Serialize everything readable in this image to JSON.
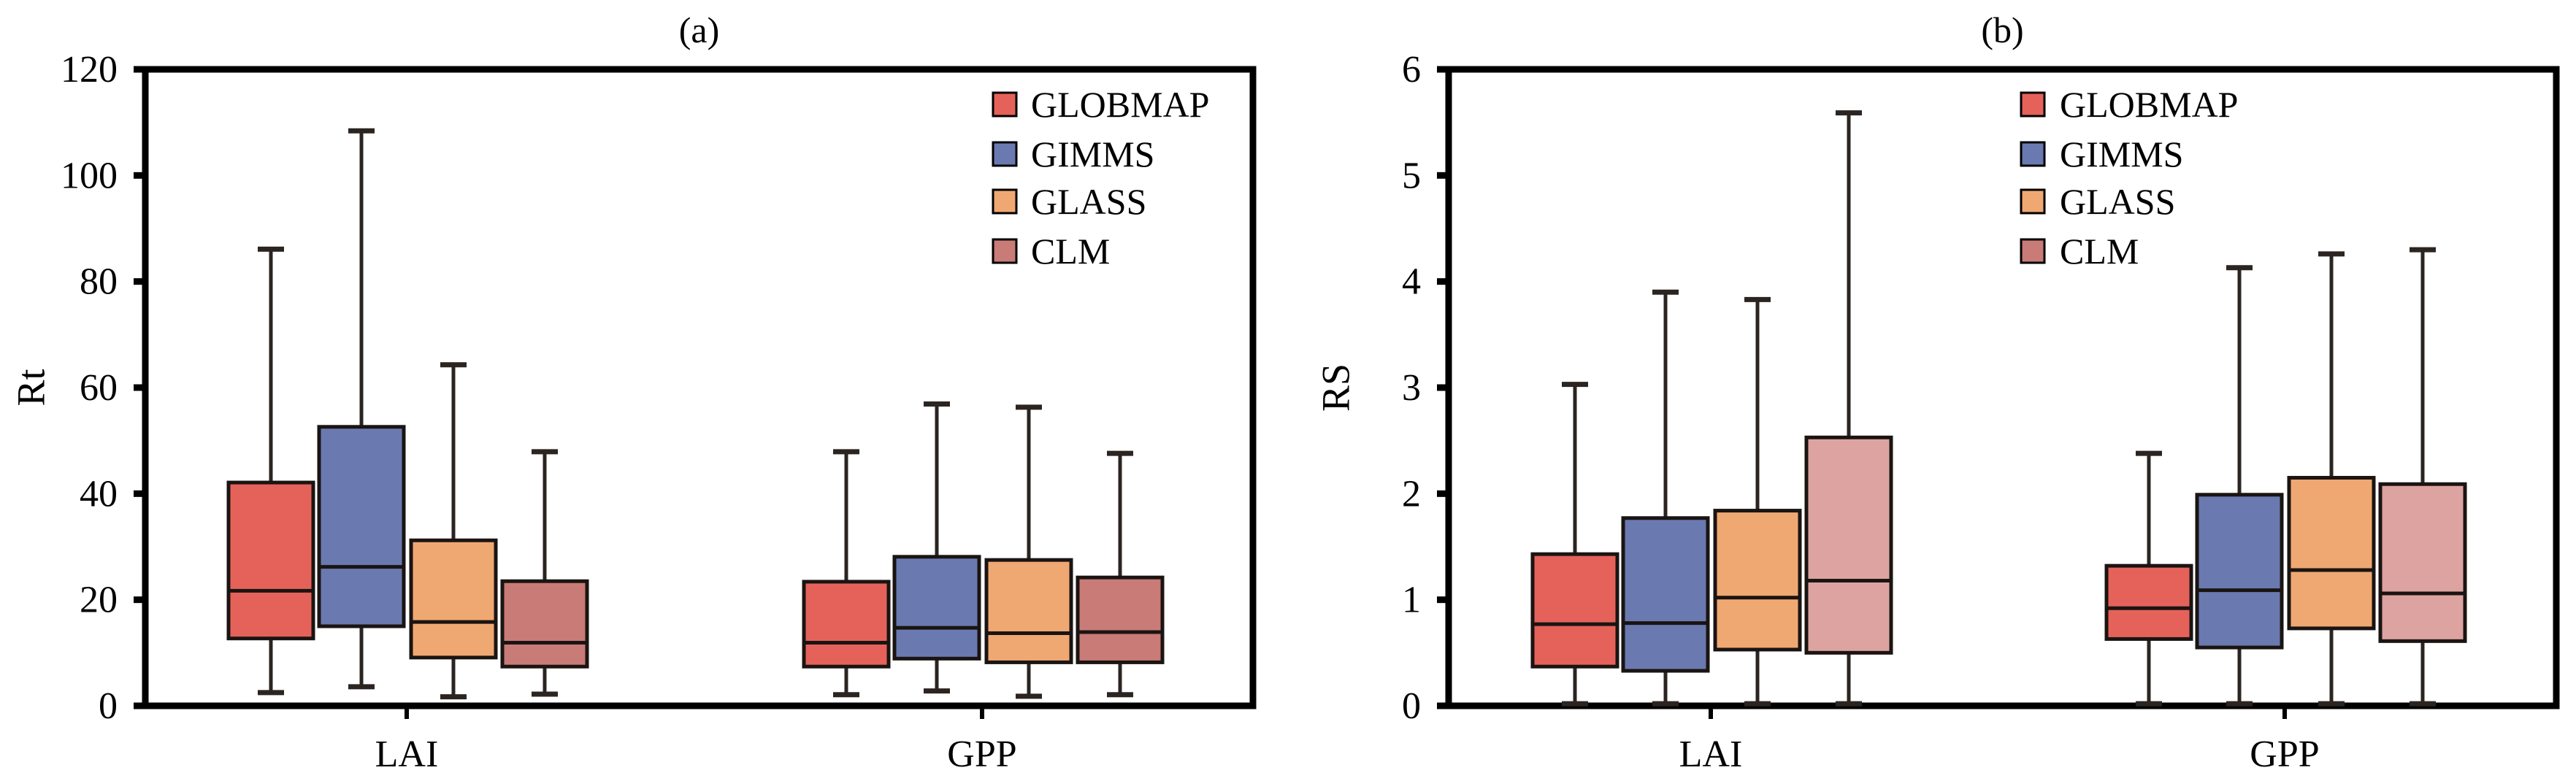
{
  "chart_data": [
    {
      "type": "box",
      "title": "(a)",
      "xlabel": "",
      "ylabel": "Rt",
      "ylim": [
        0,
        120
      ],
      "yticks": [
        "0",
        "20",
        "40",
        "60",
        "80",
        "100",
        "120"
      ],
      "categories": [
        "LAI",
        "GPP"
      ],
      "legend_position": "top-right",
      "grid": false,
      "series": [
        {
          "name": "GLOBMAP",
          "color": "#E5625A",
          "boxes": [
            {
              "min": 2.5,
              "q1": 12.7,
              "median": 21.7,
              "q3": 42.1,
              "max": 86.1
            },
            {
              "min": 2.1,
              "q1": 7.4,
              "median": 11.9,
              "q3": 23.4,
              "max": 47.9
            }
          ]
        },
        {
          "name": "GIMMS",
          "color": "#6A7AB0",
          "boxes": [
            {
              "min": 3.6,
              "q1": 15.0,
              "median": 26.2,
              "q3": 52.6,
              "max": 108.4
            },
            {
              "min": 2.8,
              "q1": 8.9,
              "median": 14.7,
              "q3": 28.1,
              "max": 56.9
            }
          ]
        },
        {
          "name": "GLASS",
          "color": "#F0A872",
          "boxes": [
            {
              "min": 1.7,
              "q1": 9.1,
              "median": 15.8,
              "q3": 31.2,
              "max": 64.3
            },
            {
              "min": 1.8,
              "q1": 8.2,
              "median": 13.7,
              "q3": 27.5,
              "max": 56.3
            }
          ]
        },
        {
          "name": "CLM",
          "color": "#C97B77",
          "boxes": [
            {
              "min": 2.2,
              "q1": 7.4,
              "median": 11.9,
              "q3": 23.5,
              "max": 47.9
            },
            {
              "min": 2.1,
              "q1": 8.2,
              "median": 13.9,
              "q3": 24.2,
              "max": 47.6
            }
          ]
        }
      ]
    },
    {
      "type": "box",
      "title": "(b)",
      "xlabel": "",
      "ylabel": "RS",
      "ylim": [
        0,
        6
      ],
      "yticks": [
        "0",
        "1",
        "2",
        "3",
        "4",
        "5",
        "6"
      ],
      "categories": [
        "LAI",
        "GPP"
      ],
      "legend_position": "top-center",
      "grid": false,
      "series": [
        {
          "name": "GLOBMAP",
          "color": "#E5625A",
          "boxes": [
            {
              "min": 0.02,
              "q1": 0.37,
              "median": 0.77,
              "q3": 1.43,
              "max": 3.03
            },
            {
              "min": 0.02,
              "q1": 0.63,
              "median": 0.92,
              "q3": 1.32,
              "max": 2.38
            }
          ]
        },
        {
          "name": "GIMMS",
          "color": "#6A7AB0",
          "boxes": [
            {
              "min": 0.02,
              "q1": 0.33,
              "median": 0.78,
              "q3": 1.77,
              "max": 3.9
            },
            {
              "min": 0.02,
              "q1": 0.55,
              "median": 1.09,
              "q3": 1.99,
              "max": 4.13
            }
          ]
        },
        {
          "name": "GLASS",
          "color": "#F0A872",
          "boxes": [
            {
              "min": 0.02,
              "q1": 0.53,
              "median": 1.02,
              "q3": 1.84,
              "max": 3.83
            },
            {
              "min": 0.02,
              "q1": 0.73,
              "median": 1.28,
              "q3": 2.15,
              "max": 4.26
            }
          ]
        },
        {
          "name": "CLM",
          "color": "#DDA3A0",
          "legend_color": "#C97B77",
          "boxes": [
            {
              "min": 0.02,
              "q1": 0.5,
              "median": 1.18,
              "q3": 2.53,
              "max": 5.59
            },
            {
              "min": 0.02,
              "q1": 0.61,
              "median": 1.06,
              "q3": 2.09,
              "max": 4.3
            }
          ]
        }
      ]
    }
  ]
}
